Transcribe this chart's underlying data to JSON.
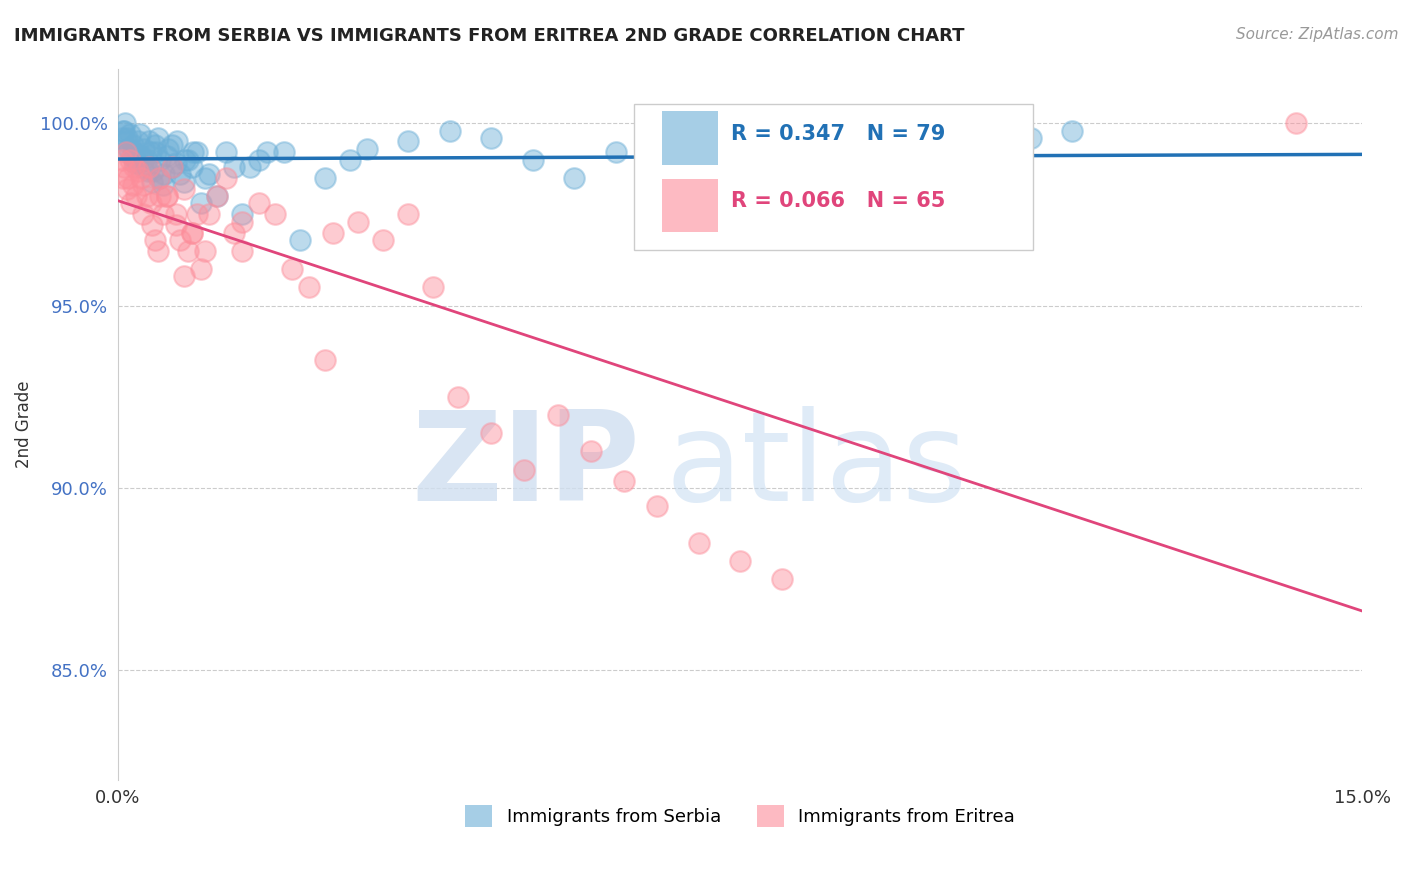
{
  "title": "IMMIGRANTS FROM SERBIA VS IMMIGRANTS FROM ERITREA 2ND GRADE CORRELATION CHART",
  "source": "Source: ZipAtlas.com",
  "xlabel_serbia": "Immigrants from Serbia",
  "xlabel_eritrea": "Immigrants from Eritrea",
  "ylabel": "2nd Grade",
  "xmin": 0.0,
  "xmax": 15.0,
  "ymin": 82.0,
  "ymax": 101.5,
  "yticks": [
    85.0,
    90.0,
    95.0,
    100.0
  ],
  "ytick_labels": [
    "85.0%",
    "90.0%",
    "95.0%",
    "100.0%"
  ],
  "xtick_labels": [
    "0.0%",
    "15.0%"
  ],
  "serbia_R": 0.347,
  "serbia_N": 79,
  "eritrea_R": 0.066,
  "eritrea_N": 65,
  "serbia_color": "#6baed6",
  "eritrea_color": "#fc8d9a",
  "serbia_line_color": "#2171b5",
  "eritrea_line_color": "#e0457b",
  "watermark_zip": "ZIP",
  "watermark_atlas": "atlas",
  "watermark_color_zip": "#d0dff0",
  "watermark_color_atlas": "#c0d8f0",
  "serbia_x": [
    0.05,
    0.08,
    0.1,
    0.12,
    0.15,
    0.18,
    0.2,
    0.22,
    0.25,
    0.28,
    0.3,
    0.32,
    0.35,
    0.38,
    0.4,
    0.42,
    0.45,
    0.48,
    0.5,
    0.55,
    0.6,
    0.65,
    0.7,
    0.75,
    0.8,
    0.85,
    0.9,
    0.95,
    1.0,
    1.05,
    1.1,
    1.2,
    1.3,
    1.4,
    1.5,
    1.6,
    1.7,
    1.8,
    2.0,
    2.2,
    2.5,
    2.8,
    3.0,
    3.5,
    4.0,
    4.5,
    5.0,
    5.5,
    6.0,
    6.5,
    7.0,
    7.5,
    8.0,
    8.5,
    9.0,
    9.5,
    10.0,
    10.5,
    11.0,
    11.5,
    0.06,
    0.09,
    0.11,
    0.14,
    0.17,
    0.21,
    0.24,
    0.27,
    0.31,
    0.36,
    0.41,
    0.46,
    0.51,
    0.56,
    0.61,
    0.66,
    0.71,
    0.81,
    0.91
  ],
  "serbia_y": [
    99.6,
    99.8,
    99.5,
    99.3,
    99.7,
    99.4,
    99.2,
    99.0,
    98.9,
    99.1,
    98.8,
    99.3,
    99.0,
    99.5,
    99.2,
    98.7,
    99.4,
    99.6,
    98.5,
    98.3,
    99.1,
    99.4,
    98.9,
    98.6,
    98.4,
    99.0,
    98.8,
    99.2,
    97.8,
    98.5,
    98.6,
    98.0,
    99.2,
    98.8,
    97.5,
    98.8,
    99.0,
    99.2,
    99.2,
    96.8,
    98.5,
    99.0,
    99.3,
    99.5,
    99.8,
    99.6,
    99.0,
    98.5,
    99.2,
    99.0,
    99.0,
    98.5,
    99.2,
    98.5,
    99.2,
    98.8,
    99.5,
    99.2,
    99.6,
    99.8,
    99.8,
    100.0,
    99.6,
    99.3,
    99.1,
    98.9,
    99.5,
    99.7,
    99.0,
    98.7,
    98.4,
    99.2,
    99.0,
    98.6,
    99.3,
    98.8,
    99.5,
    99.0,
    99.2
  ],
  "eritrea_x": [
    0.05,
    0.08,
    0.1,
    0.13,
    0.16,
    0.19,
    0.22,
    0.25,
    0.28,
    0.31,
    0.35,
    0.38,
    0.41,
    0.45,
    0.48,
    0.51,
    0.55,
    0.6,
    0.65,
    0.7,
    0.75,
    0.8,
    0.85,
    0.9,
    0.95,
    1.0,
    1.1,
    1.2,
    1.3,
    1.4,
    1.5,
    1.7,
    1.9,
    2.1,
    2.3,
    2.6,
    2.9,
    3.2,
    3.5,
    3.8,
    4.1,
    4.5,
    4.9,
    5.3,
    5.7,
    6.1,
    6.5,
    7.0,
    7.5,
    8.0,
    0.07,
    0.11,
    0.15,
    0.2,
    0.3,
    0.4,
    0.5,
    0.6,
    0.7,
    0.8,
    0.9,
    1.05,
    1.5,
    2.5,
    14.2
  ],
  "eritrea_y": [
    99.0,
    98.8,
    99.2,
    98.5,
    97.8,
    98.3,
    98.0,
    98.7,
    98.5,
    97.5,
    98.0,
    98.8,
    97.2,
    96.8,
    96.5,
    98.0,
    97.5,
    98.0,
    98.8,
    97.2,
    96.8,
    95.8,
    96.5,
    97.0,
    97.5,
    96.0,
    97.5,
    98.0,
    98.5,
    97.0,
    96.5,
    97.8,
    97.5,
    96.0,
    95.5,
    97.0,
    97.3,
    96.8,
    97.5,
    95.5,
    92.5,
    91.5,
    90.5,
    92.0,
    91.0,
    90.2,
    89.5,
    88.5,
    88.0,
    87.5,
    98.5,
    98.2,
    99.0,
    98.8,
    98.3,
    97.8,
    98.5,
    98.0,
    97.5,
    98.2,
    97.0,
    96.5,
    97.3,
    93.5,
    100.0
  ]
}
